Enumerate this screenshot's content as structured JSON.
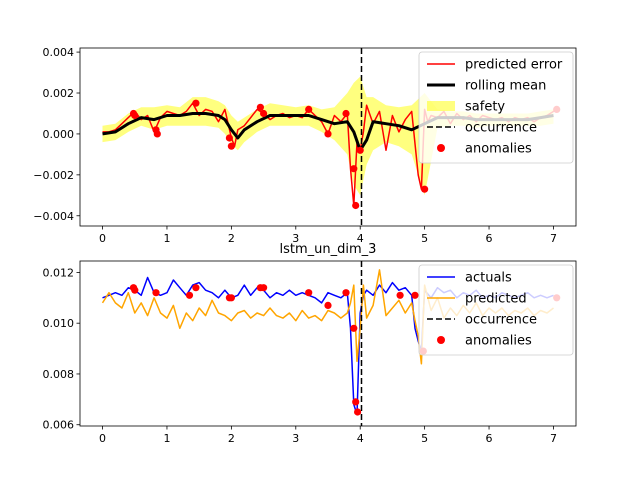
{
  "chart_data": [
    {
      "type": "line",
      "title": "",
      "xlabel": "",
      "ylabel": "",
      "xlim": [
        -0.35,
        7.35
      ],
      "ylim": [
        -0.0045,
        0.0042
      ],
      "xticks": [
        0,
        1,
        2,
        3,
        4,
        5,
        6,
        7
      ],
      "xtick_labels": [
        "0",
        "1",
        "2",
        "3",
        "4",
        "5",
        "6",
        "7"
      ],
      "yticks": [
        -0.004,
        -0.002,
        0.0,
        0.002,
        0.004
      ],
      "ytick_labels": [
        "−0.004",
        "−0.002",
        "0.000",
        "0.002",
        "0.004"
      ],
      "legend_position": "top-right",
      "occurrence_x": 4.02,
      "series": [
        {
          "name": "predicted error",
          "kind": "line",
          "color": "#ff0000",
          "x": [
            0,
            0.1,
            0.2,
            0.3,
            0.4,
            0.5,
            0.6,
            0.7,
            0.8,
            0.9,
            1.0,
            1.1,
            1.2,
            1.3,
            1.4,
            1.5,
            1.6,
            1.7,
            1.8,
            1.9,
            2.0,
            2.05,
            2.1,
            2.2,
            2.3,
            2.4,
            2.5,
            2.6,
            2.7,
            2.8,
            2.9,
            3.0,
            3.1,
            3.2,
            3.3,
            3.4,
            3.5,
            3.6,
            3.7,
            3.8,
            3.85,
            3.9,
            3.95,
            4.0,
            4.05,
            4.1,
            4.2,
            4.3,
            4.4,
            4.5,
            4.6,
            4.7,
            4.8,
            4.9,
            4.95,
            5.0,
            5.05,
            5.1,
            5.2,
            5.3,
            5.4,
            5.5,
            5.6,
            5.7,
            5.8,
            5.9,
            6.0,
            6.1,
            6.2,
            6.3,
            6.4,
            6.5,
            6.6,
            6.7,
            6.8,
            6.9,
            7.0,
            7.05
          ],
          "y": [
            0.0001,
            0.0001,
            0.0002,
            0.0005,
            0.0008,
            0.0011,
            0.0007,
            0.0009,
            0.0001,
            0.0008,
            0.0011,
            0.001,
            0.0009,
            0.0011,
            0.0015,
            0.0009,
            0.0012,
            0.0011,
            0.0006,
            0.0012,
            -0.0002,
            -0.0006,
            0.0002,
            0.0004,
            0.0008,
            0.0012,
            0.001,
            0.0007,
            0.0009,
            0.001,
            0.0008,
            0.0009,
            0.0008,
            0.0012,
            0.0009,
            0.0006,
            0.0,
            0.0009,
            0.0006,
            0.001,
            -0.0017,
            -0.0035,
            -0.0004,
            -0.0008,
            0.0001,
            0.0014,
            0.0005,
            0.0011,
            -0.0008,
            0.0009,
            0.0001,
            0.0007,
            0.0011,
            -0.002,
            -0.0027,
            0.0012,
            0.0006,
            0.0009,
            0.0008,
            0.0011,
            0.0005,
            0.001,
            0.0007,
            0.0009,
            0.0006,
            0.0009,
            0.0008,
            0.0007,
            0.0008,
            0.0006,
            0.0008,
            0.0007,
            0.0008,
            0.0006,
            0.0008,
            0.0009,
            0.0011,
            0.0012
          ]
        },
        {
          "name": "rolling mean",
          "kind": "line",
          "color": "#000000",
          "x": [
            0,
            0.2,
            0.4,
            0.6,
            0.8,
            1.0,
            1.2,
            1.4,
            1.6,
            1.8,
            1.9,
            2.0,
            2.1,
            2.2,
            2.4,
            2.6,
            2.8,
            3.0,
            3.2,
            3.4,
            3.6,
            3.8,
            3.9,
            4.0,
            4.1,
            4.2,
            4.4,
            4.6,
            4.8,
            5.0,
            5.2,
            5.4,
            5.6,
            5.8,
            6.0,
            6.2,
            6.4,
            6.6,
            6.8,
            7.0
          ],
          "y": [
            0.0,
            0.0001,
            0.0005,
            0.0008,
            0.0007,
            0.0009,
            0.0009,
            0.001,
            0.001,
            0.0009,
            0.0007,
            0.0002,
            -0.0002,
            0.0002,
            0.0006,
            0.0009,
            0.0009,
            0.0009,
            0.0009,
            0.0007,
            0.0005,
            0.0006,
            0.0001,
            -0.0008,
            -0.0003,
            0.0006,
            0.0005,
            0.0004,
            0.0002,
            0.0005,
            0.0008,
            0.0008,
            0.0008,
            0.0007,
            0.0007,
            0.0007,
            0.0007,
            0.0007,
            0.0008,
            0.0009
          ]
        },
        {
          "name": "safety",
          "kind": "band",
          "color": "#ffff00",
          "x": [
            0,
            0.2,
            0.4,
            0.6,
            0.8,
            1.0,
            1.2,
            1.4,
            1.6,
            1.8,
            1.9,
            2.0,
            2.1,
            2.2,
            2.4,
            2.6,
            2.8,
            3.0,
            3.2,
            3.4,
            3.6,
            3.8,
            3.9,
            4.0,
            4.1,
            4.2,
            4.4,
            4.6,
            4.8,
            5.0,
            5.2,
            5.4,
            5.6,
            5.8,
            6.0,
            6.2,
            6.4,
            6.6,
            6.8,
            7.0
          ],
          "lower": [
            -0.0004,
            -0.0003,
            0.0001,
            0.0004,
            0.0002,
            0.0004,
            0.0004,
            0.0004,
            0.0004,
            0.0003,
            0.0,
            -0.0005,
            -0.0008,
            -0.0004,
            0.0001,
            0.0004,
            0.0004,
            0.0004,
            0.0004,
            0.0001,
            -0.0003,
            -0.001,
            -0.0025,
            -0.003,
            -0.0015,
            -0.0008,
            -0.0004,
            -0.0006,
            -0.001,
            -0.003,
            0.0003,
            0.0004,
            0.0004,
            0.0003,
            0.0004,
            0.0004,
            0.0004,
            0.0004,
            0.0004,
            0.0005
          ],
          "upper": [
            0.0004,
            0.0005,
            0.001,
            0.0013,
            0.0013,
            0.0014,
            0.0013,
            0.0018,
            0.0018,
            0.0016,
            0.0014,
            0.0009,
            0.0006,
            0.0008,
            0.0012,
            0.0015,
            0.0014,
            0.0013,
            0.0014,
            0.0012,
            0.0013,
            0.002,
            0.0025,
            0.0028,
            0.0018,
            0.0018,
            0.0014,
            0.0013,
            0.0014,
            0.002,
            0.0012,
            0.0011,
            0.0011,
            0.001,
            0.001,
            0.001,
            0.001,
            0.001,
            0.0011,
            0.0012
          ]
        },
        {
          "name": "occurrence",
          "kind": "vline",
          "color": "#000000"
        },
        {
          "name": "anomalies",
          "kind": "scatter",
          "color": "#ff0000",
          "x": [
            0.48,
            0.5,
            0.83,
            0.85,
            1.45,
            1.97,
            2.0,
            2.45,
            2.5,
            3.2,
            3.5,
            3.78,
            3.9,
            3.93,
            4.0,
            5.0,
            7.05
          ],
          "y": [
            0.001,
            0.0009,
            0.0002,
            0.0,
            0.0015,
            -0.0002,
            -0.0006,
            0.0013,
            0.001,
            0.0012,
            0.0,
            0.001,
            -0.0017,
            -0.0035,
            -0.0008,
            -0.0027,
            0.0012
          ]
        }
      ]
    },
    {
      "type": "line",
      "title": "lstm_un_dim_3",
      "xlabel": "",
      "ylabel": "",
      "xlim": [
        -0.35,
        7.35
      ],
      "ylim": [
        0.00595,
        0.01245
      ],
      "xticks": [
        0,
        1,
        2,
        3,
        4,
        5,
        6,
        7
      ],
      "xtick_labels": [
        "0",
        "1",
        "2",
        "3",
        "4",
        "5",
        "6",
        "7"
      ],
      "yticks": [
        0.006,
        0.008,
        0.01,
        0.012
      ],
      "ytick_labels": [
        "0.006",
        "0.008",
        "0.010",
        "0.012"
      ],
      "legend_position": "top-right",
      "occurrence_x": 4.02,
      "series": [
        {
          "name": "actuals",
          "kind": "line",
          "color": "#0000ff",
          "x": [
            0,
            0.1,
            0.2,
            0.3,
            0.4,
            0.5,
            0.6,
            0.7,
            0.8,
            0.9,
            1.0,
            1.1,
            1.2,
            1.3,
            1.4,
            1.5,
            1.6,
            1.7,
            1.8,
            1.9,
            2.0,
            2.1,
            2.2,
            2.3,
            2.4,
            2.5,
            2.6,
            2.7,
            2.8,
            2.9,
            3.0,
            3.1,
            3.2,
            3.3,
            3.4,
            3.5,
            3.6,
            3.7,
            3.8,
            3.85,
            3.9,
            3.95,
            4.0,
            4.05,
            4.1,
            4.2,
            4.3,
            4.4,
            4.5,
            4.6,
            4.7,
            4.8,
            4.85,
            4.9,
            4.95,
            5.0,
            5.1,
            5.2,
            5.3,
            5.4,
            5.5,
            5.6,
            5.7,
            5.8,
            5.9,
            6.0,
            6.1,
            6.2,
            6.3,
            6.4,
            6.5,
            6.6,
            6.7,
            6.8,
            6.9,
            7.0
          ],
          "y": [
            0.011,
            0.0111,
            0.0112,
            0.0111,
            0.0114,
            0.0113,
            0.0111,
            0.0118,
            0.0112,
            0.0111,
            0.0112,
            0.0117,
            0.0114,
            0.0111,
            0.0115,
            0.0116,
            0.0113,
            0.0112,
            0.011,
            0.0113,
            0.011,
            0.0111,
            0.0115,
            0.0111,
            0.0114,
            0.0113,
            0.011,
            0.0112,
            0.0111,
            0.0113,
            0.0111,
            0.0112,
            0.0111,
            0.011,
            0.0108,
            0.0112,
            0.0111,
            0.011,
            0.0112,
            0.0098,
            0.0068,
            0.0064,
            0.0104,
            0.0111,
            0.0113,
            0.0111,
            0.0115,
            0.0112,
            0.0116,
            0.0113,
            0.0114,
            0.0111,
            0.0098,
            0.0093,
            0.0089,
            0.0113,
            0.011,
            0.0114,
            0.0112,
            0.0113,
            0.011,
            0.0112,
            0.0111,
            0.0113,
            0.011,
            0.0111,
            0.011,
            0.0112,
            0.0111,
            0.011,
            0.0111,
            0.0112,
            0.011,
            0.0111,
            0.011,
            0.0111
          ]
        },
        {
          "name": "predicted",
          "kind": "line",
          "color": "#ffa500",
          "x": [
            0,
            0.1,
            0.2,
            0.3,
            0.4,
            0.5,
            0.6,
            0.7,
            0.8,
            0.9,
            1.0,
            1.1,
            1.2,
            1.3,
            1.4,
            1.5,
            1.6,
            1.7,
            1.8,
            1.9,
            2.0,
            2.1,
            2.2,
            2.3,
            2.4,
            2.5,
            2.6,
            2.7,
            2.8,
            2.9,
            3.0,
            3.1,
            3.2,
            3.3,
            3.4,
            3.5,
            3.6,
            3.7,
            3.8,
            3.85,
            3.9,
            3.95,
            4.0,
            4.05,
            4.1,
            4.2,
            4.3,
            4.4,
            4.5,
            4.6,
            4.7,
            4.8,
            4.85,
            4.9,
            4.95,
            5.0,
            5.1,
            5.2,
            5.3,
            5.4,
            5.5,
            5.6,
            5.7,
            5.8,
            5.9,
            6.0,
            6.1,
            6.2,
            6.3,
            6.4,
            6.5,
            6.6,
            6.7,
            6.8,
            6.9,
            7.0
          ],
          "y": [
            0.0108,
            0.0112,
            0.0108,
            0.0106,
            0.0112,
            0.0104,
            0.0108,
            0.0103,
            0.011,
            0.0104,
            0.0102,
            0.0107,
            0.0098,
            0.0104,
            0.0101,
            0.0106,
            0.0103,
            0.0109,
            0.0104,
            0.0103,
            0.0101,
            0.0104,
            0.0105,
            0.0102,
            0.0104,
            0.0103,
            0.0106,
            0.0103,
            0.0102,
            0.0104,
            0.0101,
            0.0105,
            0.0102,
            0.0103,
            0.0101,
            0.0105,
            0.0104,
            0.0102,
            0.0104,
            0.0108,
            0.0115,
            0.0085,
            0.0098,
            0.0115,
            0.0102,
            0.0107,
            0.0121,
            0.0103,
            0.0106,
            0.0109,
            0.0104,
            0.0108,
            0.0101,
            0.0095,
            0.0084,
            0.0115,
            0.0105,
            0.011,
            0.0102,
            0.0106,
            0.0103,
            0.0107,
            0.0104,
            0.0108,
            0.0103,
            0.0106,
            0.0104,
            0.0106,
            0.0103,
            0.0105,
            0.0104,
            0.0106,
            0.0103,
            0.0105,
            0.0104,
            0.0106
          ]
        },
        {
          "name": "occurrence",
          "kind": "vline",
          "color": "#000000"
        },
        {
          "name": "anomalies",
          "kind": "scatter",
          "color": "#ff0000",
          "x": [
            0.48,
            0.5,
            0.83,
            1.35,
            1.45,
            1.97,
            2.0,
            2.45,
            2.5,
            3.2,
            3.5,
            3.78,
            3.9,
            3.93,
            3.96,
            4.62,
            4.85,
            4.98,
            7.05
          ],
          "y": [
            0.0114,
            0.0113,
            0.0112,
            0.0111,
            0.0114,
            0.011,
            0.011,
            0.0114,
            0.0114,
            0.0112,
            0.0107,
            0.0112,
            0.0098,
            0.0069,
            0.0065,
            0.0111,
            0.0111,
            0.0089,
            0.011
          ]
        }
      ]
    }
  ]
}
